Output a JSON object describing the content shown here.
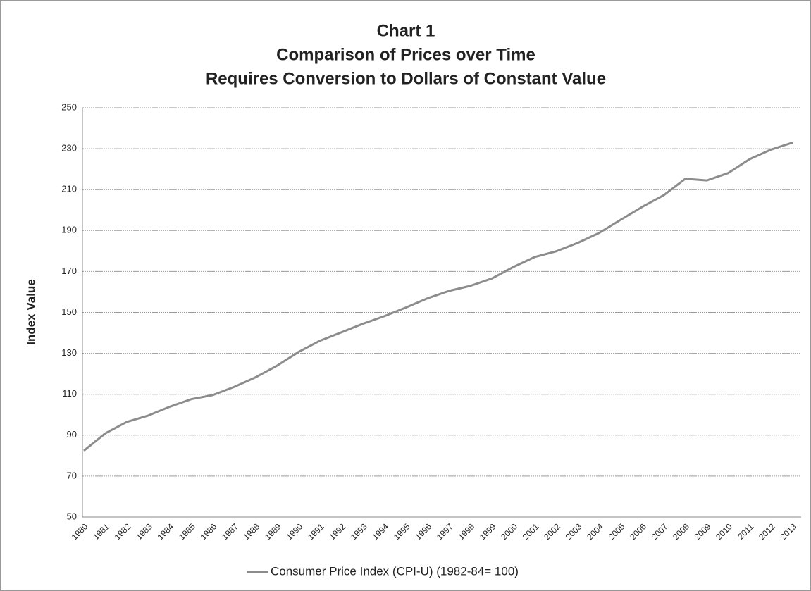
{
  "chart_data": {
    "type": "line",
    "title": [
      "Chart 1",
      "Comparison of Prices over Time",
      "Requires Conversion to Dollars of Constant Value"
    ],
    "y_label": "Index Value",
    "categories": [
      "1980",
      "1981",
      "1982",
      "1983",
      "1984",
      "1985",
      "1986",
      "1987",
      "1988",
      "1989",
      "1990",
      "1991",
      "1992",
      "1993",
      "1994",
      "1995",
      "1996",
      "1997",
      "1998",
      "1999",
      "2000",
      "2001",
      "2002",
      "2003",
      "2004",
      "2005",
      "2006",
      "2007",
      "2008",
      "2009",
      "2010",
      "2011",
      "2012",
      "2013"
    ],
    "series": [
      {
        "name": "Consumer Price Index (CPI-U) (1982-84= 100)",
        "color": "#8c8c8c",
        "values": [
          82.4,
          90.9,
          96.5,
          99.6,
          103.9,
          107.6,
          109.6,
          113.6,
          118.3,
          124.0,
          130.7,
          136.2,
          140.3,
          144.5,
          148.2,
          152.4,
          156.9,
          160.5,
          163.0,
          166.6,
          172.2,
          177.1,
          179.9,
          184.0,
          188.9,
          195.3,
          201.6,
          207.3,
          215.3,
          214.5,
          218.1,
          224.9,
          229.6,
          233.0
        ]
      }
    ],
    "ylim": [
      50,
      250
    ],
    "yticks": [
      50,
      70,
      90,
      110,
      130,
      150,
      170,
      190,
      210,
      230,
      250
    ],
    "grid": true,
    "legend": "bottom"
  }
}
